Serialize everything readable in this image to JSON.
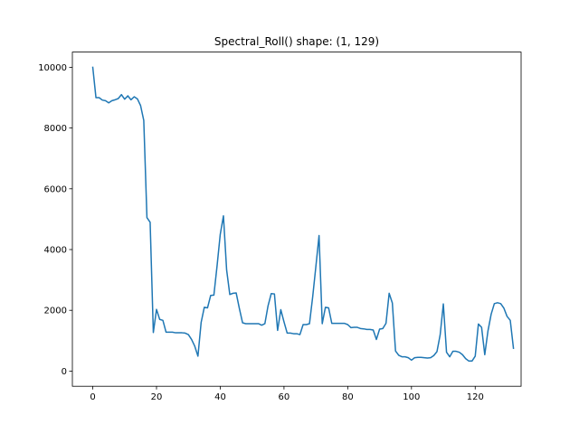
{
  "chart_data": {
    "type": "line",
    "title": "Spectral_Roll() shape: (1, 129)",
    "xlabel": "",
    "ylabel": "",
    "xlim": [
      -6.4,
      134.4
    ],
    "ylim": [
      -500,
      10500
    ],
    "x_ticks": [
      0,
      20,
      40,
      60,
      80,
      100,
      120
    ],
    "y_ticks": [
      0,
      2000,
      4000,
      6000,
      8000,
      10000
    ],
    "grid": false,
    "legend": "none",
    "line_color": "#1f77b4",
    "series": [
      {
        "values": [
          10000,
          9000,
          9000,
          8920,
          8900,
          8830,
          8900,
          8930,
          8970,
          9100,
          8950,
          9060,
          8930,
          9030,
          8960,
          8740,
          8250,
          5050,
          4900,
          1270,
          2030,
          1700,
          1670,
          1280,
          1280,
          1280,
          1260,
          1260,
          1260,
          1250,
          1200,
          1040,
          820,
          490,
          1600,
          2100,
          2080,
          2490,
          2500,
          3460,
          4500,
          5110,
          3330,
          2520,
          2560,
          2570,
          2060,
          1590,
          1560,
          1560,
          1560,
          1560,
          1560,
          1510,
          1560,
          2150,
          2550,
          2540,
          1340,
          2020,
          1620,
          1250,
          1250,
          1230,
          1230,
          1200,
          1530,
          1530,
          1560,
          2440,
          3440,
          4460,
          1560,
          2100,
          2080,
          1570,
          1570,
          1570,
          1570,
          1570,
          1530,
          1430,
          1440,
          1440,
          1400,
          1390,
          1370,
          1370,
          1350,
          1040,
          1380,
          1400,
          1570,
          2560,
          2240,
          660,
          520,
          470,
          470,
          440,
          360,
          440,
          450,
          450,
          440,
          430,
          440,
          510,
          640,
          1190,
          2210,
          620,
          470,
          650,
          650,
          620,
          540,
          410,
          330,
          330,
          490,
          1550,
          1440,
          540,
          1320,
          1870,
          2220,
          2250,
          2220,
          2070,
          1800,
          1670,
          750
        ]
      }
    ]
  }
}
